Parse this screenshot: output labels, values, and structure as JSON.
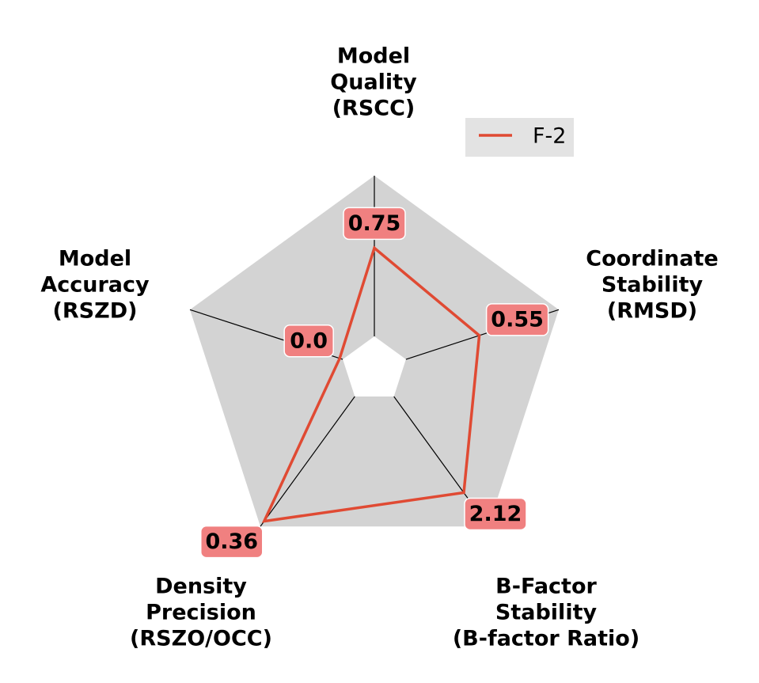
{
  "chart_data": {
    "type": "radar",
    "axes": [
      {
        "label_lines": [
          "Model",
          "Quality",
          "(RSCC)"
        ]
      },
      {
        "label_lines": [
          "Coordinate",
          "Stability",
          "(RMSD)"
        ]
      },
      {
        "label_lines": [
          "B-Factor",
          "Stability",
          "(B-factor Ratio)"
        ]
      },
      {
        "label_lines": [
          "Density",
          "Precision",
          "(RSZO/OCC)"
        ]
      },
      {
        "label_lines": [
          "Model",
          "Accuracy",
          "(RSZD)"
        ]
      }
    ],
    "series": [
      {
        "name": "F-2",
        "color": "#e04a33",
        "value_labels": [
          "0.75",
          "0.55",
          "2.12",
          "0.36",
          "0.0"
        ],
        "plot_fractions": [
          0.55,
          0.48,
          0.74,
          0.96,
          0.02
        ]
      }
    ],
    "legend": {
      "placement": "top-right"
    },
    "colors": {
      "background_polygon": "#d3d3d3",
      "value_box": "#f08080",
      "spoke": "#000000",
      "line": "#e04a33",
      "legend_box": "#e3e3e3"
    }
  }
}
